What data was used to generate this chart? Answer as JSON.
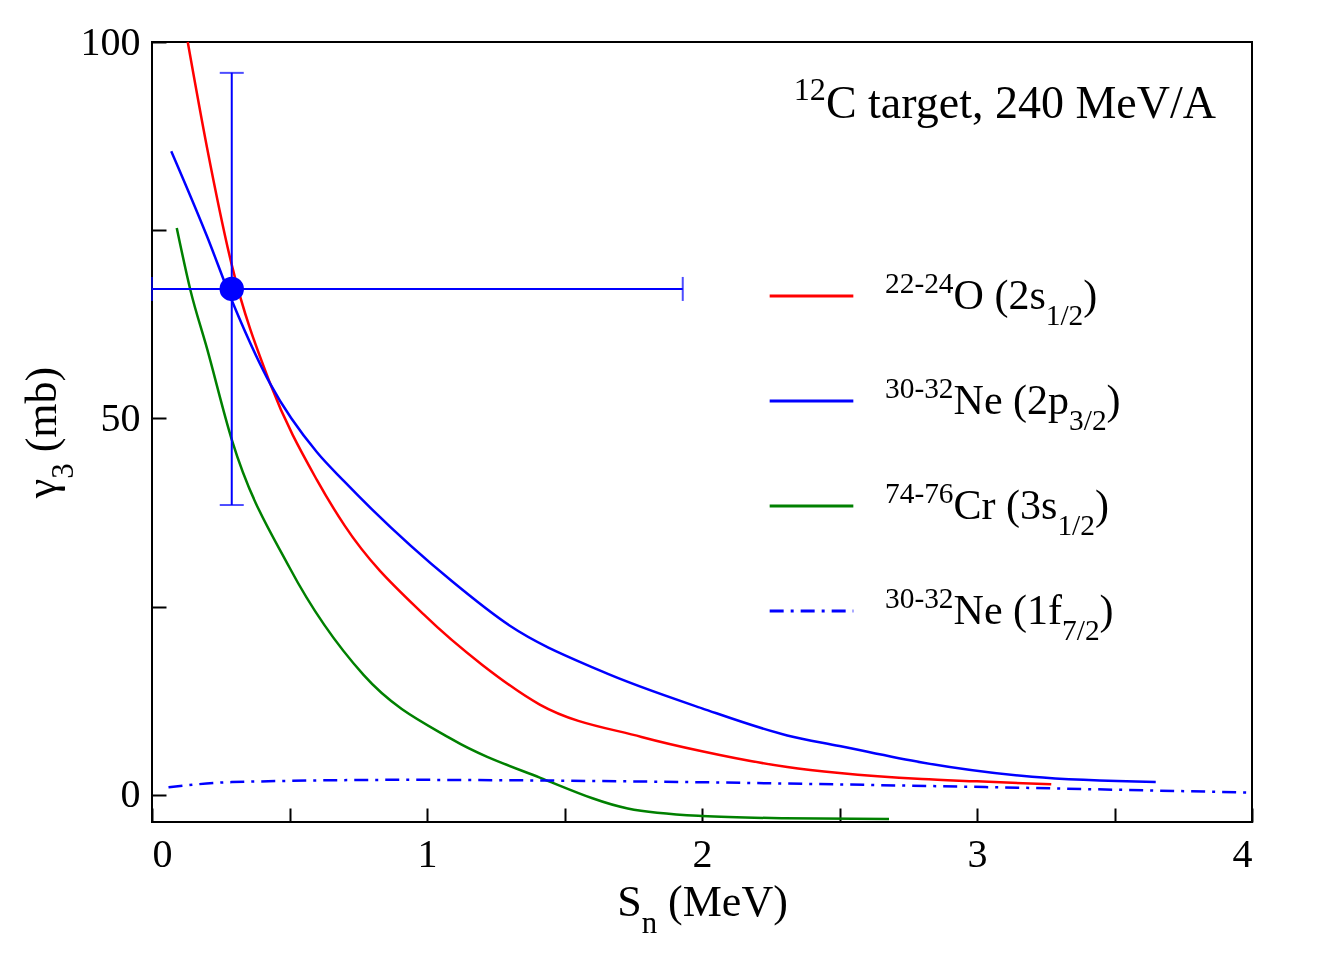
{
  "chart_data": {
    "type": "line",
    "xlabel": "S$_{n}$  (MeV)",
    "ylabel": "γ$_{3}$  (mb)",
    "annotations": [
      "$^{12}$C target, 240 MeV/A"
    ],
    "xlim": [
      0,
      4
    ],
    "ylim": [
      -3.6,
      100
    ],
    "xticks": [
      0,
      {
        "value": 0.5,
        "label": null
      },
      1,
      {
        "value": 1.5,
        "label": null
      },
      2,
      {
        "value": 2.5,
        "label": null
      },
      3,
      {
        "value": 3.5,
        "label": null
      },
      4
    ],
    "yticks": [
      0,
      {
        "value": 25,
        "label": null
      },
      50,
      {
        "value": 75,
        "label": null
      },
      100
    ],
    "grid": false,
    "legend": "right",
    "series": [
      {
        "name": "$^{22-24}$O (2s$_{1/2}$)",
        "color": "#ff0000",
        "line_style": "solid",
        "x": [
          0.13,
          0.2,
          0.29,
          0.43,
          0.6,
          0.7,
          0.99,
          1.2,
          1.41,
          1.78,
          2.0,
          2.31,
          2.5,
          2.8,
          3.0,
          3.27
        ],
        "values": [
          100,
          86,
          70.4,
          54.6,
          41.8,
          35.8,
          23.9,
          17.3,
          12.0,
          7.7,
          5.8,
          3.7,
          2.9,
          2.1,
          1.8,
          1.4
        ]
      },
      {
        "name": "$^{30-32}$Ne (2p$_{3/2}$)",
        "color": "#0000ff",
        "line_style": "solid",
        "x": [
          0.07,
          0.2,
          0.29,
          0.43,
          0.6,
          0.7,
          1.09,
          1.3,
          1.63,
          2.0,
          2.31,
          2.5,
          2.8,
          3.2,
          3.65
        ],
        "values": [
          85.5,
          74.2,
          65.7,
          54.6,
          45.5,
          41.6,
          28.4,
          22.5,
          16.5,
          11.5,
          7.9,
          6.5,
          4.3,
          2.4,
          1.7
        ]
      },
      {
        "name": "$^{74-76}$Cr (3s$_{1/2}$)",
        "color": "#008000",
        "line_style": "solid",
        "x": [
          0.09,
          0.14,
          0.2,
          0.29,
          0.5,
          0.77,
          1.09,
          1.41,
          1.73,
          2.0,
          2.3,
          2.68
        ],
        "values": [
          75.3,
          67,
          59.3,
          47.2,
          30.2,
          15.9,
          7.4,
          2.3,
          -1.8,
          -2.8,
          -3.1,
          -3.2
        ]
      },
      {
        "name": "$^{30-32}$Ne (1f$_{7/2}$)",
        "color": "#0000ff",
        "line_style": "dashdot",
        "x": [
          0.06,
          0.29,
          0.93,
          1.73,
          2.94,
          4.0
        ],
        "values": [
          1.0,
          1.7,
          2.0,
          1.8,
          1.1,
          0.3
        ]
      },
      {
        "type": "scatter",
        "color": "#0000ff",
        "marker": "circle",
        "x": [
          0.29
        ],
        "values": [
          67.2
        ],
        "errors": [
          [
            38.5,
            95.9
          ]
        ],
        "xerrors": [
          [
            0,
            1.93
          ]
        ]
      }
    ]
  }
}
